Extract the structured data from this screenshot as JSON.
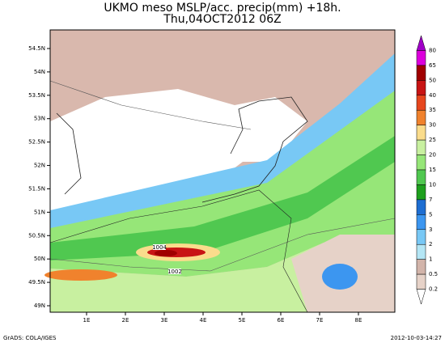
{
  "title": {
    "line1": "UKMO meso MSLP/acc. precip(mm) +18h.",
    "line2": "Thu,04OCT2012 06Z"
  },
  "lat_labels": [
    "54.5N",
    "54N",
    "53.5N",
    "53N",
    "52.5N",
    "52N",
    "51.5N",
    "51N",
    "50.5N",
    "50N",
    "49.5N",
    "49N"
  ],
  "lon_labels": [
    "1E",
    "2E",
    "3E",
    "4E",
    "5E",
    "6E",
    "7E",
    "8E"
  ],
  "isobar_labels": [
    "1004",
    "1002"
  ],
  "colorbar": {
    "levels": [
      80,
      65,
      50,
      40,
      35,
      30,
      25,
      20,
      15,
      10,
      7,
      5,
      3,
      2,
      1,
      0.5,
      0.2
    ],
    "colors": [
      "#a000c8",
      "#dc00dc",
      "#a00000",
      "#c81414",
      "#e6461e",
      "#f0822d",
      "#fadc8c",
      "#c8f0a0",
      "#96e678",
      "#50c850",
      "#1ea01e",
      "#1e6ed2",
      "#3c96f0",
      "#78c8f5",
      "#b4e6f5",
      "#d2b4aa",
      "#e6d2c8",
      "#ffffff"
    ]
  },
  "footer": {
    "left": "GrADS: COLA/IGES",
    "right": "2012-10-03-14:27"
  }
}
